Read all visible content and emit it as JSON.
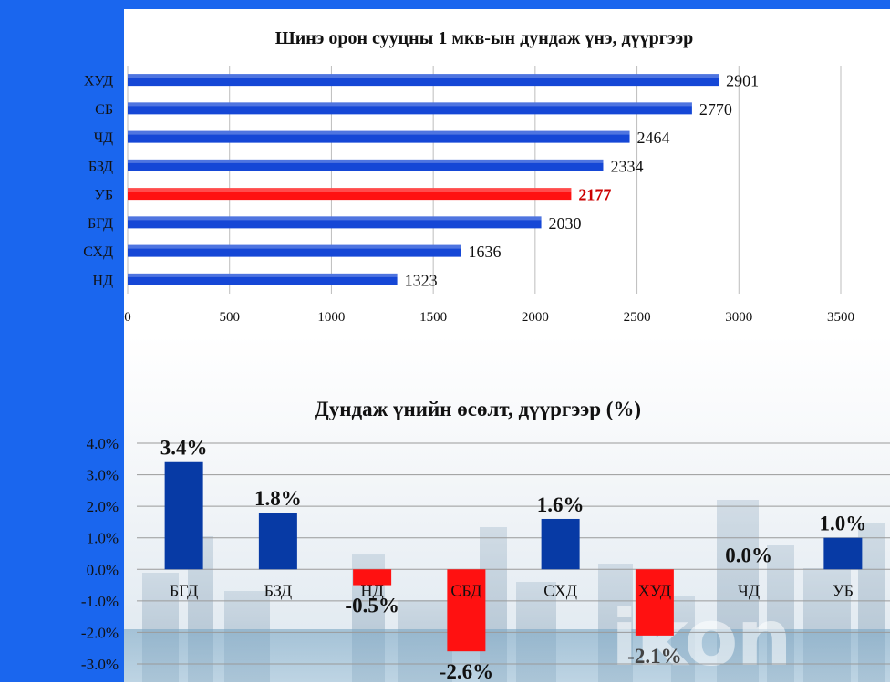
{
  "watermark": "ikon",
  "chart_data": [
    {
      "type": "bar",
      "orientation": "horizontal",
      "title": "Шинэ орон сууцны 1 мкв-ын дундаж үнэ, дүүргээр",
      "categories": [
        "ХУД",
        "СБ",
        "ЧД",
        "БЗД",
        "УБ",
        "БГД",
        "СХД",
        "НД"
      ],
      "values": [
        2901,
        2770,
        2464,
        2334,
        2177,
        2030,
        1636,
        1323
      ],
      "value_labels": [
        "2901",
        "2770",
        "2464",
        "2334",
        "2177",
        "2030",
        "1636",
        "1323"
      ],
      "xlim": [
        0,
        3500
      ],
      "x_ticks": [
        0,
        500,
        1000,
        1500,
        2000,
        2500,
        3000,
        3500
      ],
      "x_tick_labels": [
        "0",
        "500",
        "1000",
        "1500",
        "2000",
        "2500",
        "3000",
        "3500"
      ],
      "highlight": "УБ",
      "colors": {
        "bar": "#1547d6",
        "highlight": "#ff1111",
        "highlight_label": "#cc0000"
      },
      "grid": true
    },
    {
      "type": "bar",
      "title": "Дундаж үнийн өсөлт, дүүргээр (%)",
      "categories": [
        "БГД",
        "БЗД",
        "НД",
        "СБД",
        "СХД",
        "ХУД",
        "ЧД",
        "УБ"
      ],
      "values": [
        3.4,
        1.8,
        -0.5,
        -2.6,
        1.6,
        -2.1,
        0.0,
        1.0
      ],
      "value_labels": [
        "3.4%",
        "1.8%",
        "-0.5%",
        "-2.6%",
        "1.6%",
        "-2.1%",
        "0.0%",
        "1.0%"
      ],
      "ylim": [
        -3.0,
        4.0
      ],
      "y_ticks": [
        4.0,
        3.0,
        2.0,
        1.0,
        0.0,
        -1.0,
        -2.0,
        -3.0
      ],
      "y_tick_labels": [
        "4.0%",
        "3.0%",
        "2.0%",
        "1.0%",
        "0.0%",
        "-1.0%",
        "-2.0%",
        "-3.0%"
      ],
      "colors": {
        "positive": "#073aa5",
        "negative": "#ff1111"
      },
      "grid": true
    }
  ]
}
